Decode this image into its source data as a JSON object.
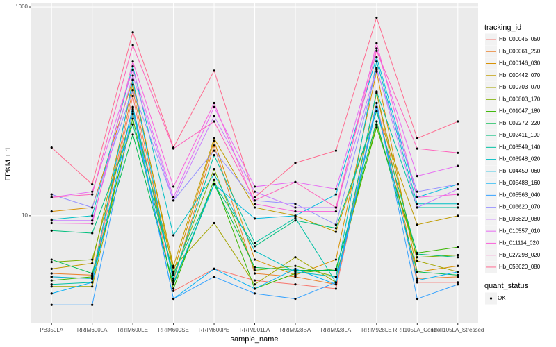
{
  "chart_data": {
    "type": "line",
    "x_label": "sample_name",
    "y_label": "FPKM + 1",
    "log_scale": true,
    "grid": true,
    "ylim": [
      0.93,
      1080
    ],
    "yticks": [
      10,
      1000
    ],
    "categories": [
      "PB350LA",
      "RRIM600LA",
      "RRIM600LE",
      "RRIM600SE",
      "RRIM600PE",
      "RRIM901LA",
      "RRIM928BA",
      "RRIM928LA",
      "RRIM928LE",
      "RRII105LA_Control",
      "RRII105LA_Stressed"
    ],
    "legend_title": "tracking_id",
    "point_legend_title": "quant_status",
    "point_legend_label": "OK",
    "point_color": "#000000",
    "series": [
      {
        "name": "Hb_000045_050",
        "color": "#F8766D",
        "values": [
          2.6,
          2.5,
          140,
          1.9,
          3.1,
          2.4,
          2.2,
          2.0,
          120,
          2.3,
          2.3
        ]
      },
      {
        "name": "Hb_000061_250",
        "color": "#EA8331",
        "values": [
          2.8,
          2.7,
          160,
          2.4,
          47,
          2.8,
          2.6,
          2.2,
          150,
          2.5,
          2.6
        ]
      },
      {
        "name": "Hb_000146_030",
        "color": "#D89000",
        "values": [
          11,
          12,
          200,
          2.9,
          52,
          3.8,
          2.7,
          3.8,
          240,
          2.9,
          3.3
        ]
      },
      {
        "name": "Hb_000442_070",
        "color": "#C09B00",
        "values": [
          3.1,
          3.5,
          180,
          3.3,
          55,
          12,
          10,
          7.0,
          100,
          8.2,
          10
        ]
      },
      {
        "name": "Hb_000703_070",
        "color": "#A3A500",
        "values": [
          2.1,
          2.1,
          95,
          3.2,
          8.5,
          2.2,
          4.0,
          2.3,
          150,
          3.7,
          2.9
        ]
      },
      {
        "name": "Hb_000803_170",
        "color": "#7CAE00",
        "values": [
          3.6,
          3.8,
          105,
          2.7,
          28,
          3.0,
          3.3,
          2.6,
          75,
          4.0,
          4.2
        ]
      },
      {
        "name": "Hb_001047_180",
        "color": "#39B600",
        "values": [
          2.4,
          2.6,
          85,
          2.0,
          22,
          2.0,
          2.8,
          3.1,
          70,
          4.4,
          5.0
        ]
      },
      {
        "name": "Hb_002272_220",
        "color": "#00BB4E",
        "values": [
          3.8,
          2.8,
          60,
          2.2,
          20,
          3.2,
          3.0,
          3.0,
          80,
          2.9,
          2.7
        ]
      },
      {
        "name": "Hb_002411_100",
        "color": "#00BF7D",
        "values": [
          7.2,
          6.8,
          75,
          2.8,
          20,
          5.1,
          9.0,
          7.6,
          100,
          4.3,
          4.0
        ]
      },
      {
        "name": "Hb_003549_140",
        "color": "#00C1A3",
        "values": [
          2.2,
          2.3,
          110,
          2.5,
          38,
          5.5,
          9.5,
          2.3,
          155,
          12,
          12
        ]
      },
      {
        "name": "Hb_003948_020",
        "color": "#00BFC4",
        "values": [
          9.2,
          10,
          270,
          6.5,
          25,
          4.6,
          2.9,
          2.6,
          300,
          13,
          13
        ]
      },
      {
        "name": "Hb_004459_060",
        "color": "#00BAE0",
        "values": [
          2.6,
          2.5,
          200,
          2.3,
          20,
          9.4,
          10,
          16,
          330,
          15,
          20
        ]
      },
      {
        "name": "Hb_005488_160",
        "color": "#00B0F6",
        "values": [
          1.8,
          2.3,
          110,
          1.6,
          3.1,
          2.0,
          3.1,
          2.2,
          110,
          2.4,
          2.9
        ]
      },
      {
        "name": "Hb_005563_040",
        "color": "#35A2FF",
        "values": [
          1.4,
          1.4,
          100,
          1.6,
          2.6,
          1.8,
          1.6,
          2.3,
          120,
          1.6,
          2.2
        ]
      },
      {
        "name": "Hb_006620_070",
        "color": "#9590FF",
        "values": [
          16,
          12,
          160,
          14,
          42,
          14,
          13,
          8.2,
          250,
          17,
          20
        ]
      },
      {
        "name": "Hb_006829_080",
        "color": "#C77CFF",
        "values": [
          9,
          9,
          220,
          14,
          90,
          17,
          12,
          12,
          260,
          12,
          18
        ]
      },
      {
        "name": "Hb_010557_010",
        "color": "#E76BF3",
        "values": [
          15,
          17,
          250,
          15,
          110,
          19,
          21,
          18,
          400,
          24,
          30
        ]
      },
      {
        "name": "Hb_011114_020",
        "color": "#FA62DB",
        "values": [
          8.5,
          8.4,
          300,
          19,
          120,
          13,
          11,
          11,
          450,
          15,
          16
        ]
      },
      {
        "name": "Hb_027298_020",
        "color": "#FF62BC",
        "values": [
          15,
          16,
          430,
          44,
          80,
          14,
          21,
          12,
          380,
          44,
          40
        ]
      },
      {
        "name": "Hb_058620_080",
        "color": "#FF6C91",
        "values": [
          45,
          20,
          570,
          45,
          245,
          15,
          32,
          42,
          790,
          55,
          80
        ]
      }
    ]
  }
}
